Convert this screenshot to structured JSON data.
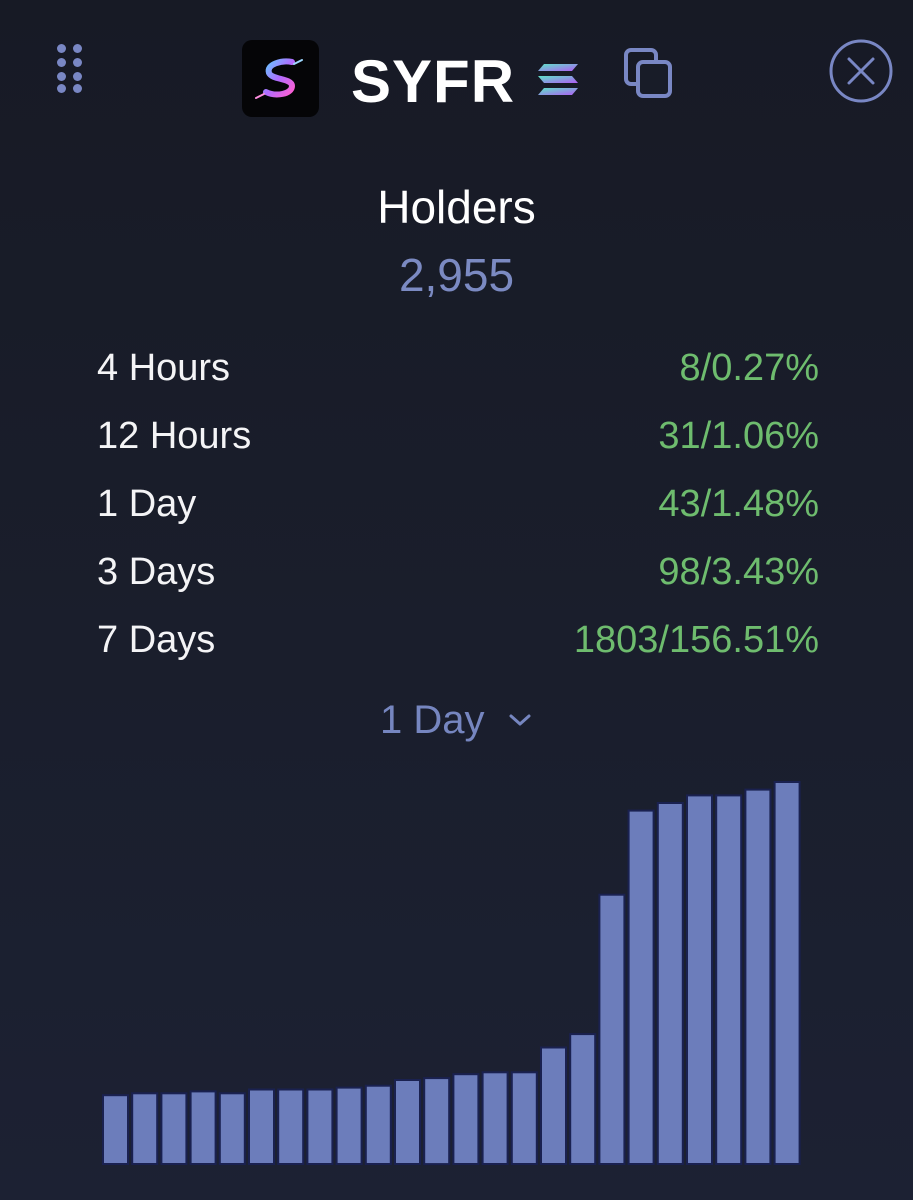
{
  "header": {
    "token_symbol": "SYFR",
    "logo_icon": "syfr-s-logo",
    "chain_icon": "solana-icon",
    "menu_icon": "grip-dots-icon",
    "copy_icon": "copy-icon",
    "close_icon": "close-circle-icon"
  },
  "holders": {
    "title": "Holders",
    "count": "2,955"
  },
  "stats": [
    {
      "label": "4 Hours",
      "value": "8/0.27%"
    },
    {
      "label": "12 Hours",
      "value": "31/1.06%"
    },
    {
      "label": "1 Day",
      "value": "43/1.48%"
    },
    {
      "label": "3 Days",
      "value": "98/3.43%"
    },
    {
      "label": "7 Days",
      "value": "1803/156.51%"
    }
  ],
  "period_select": {
    "selected": "1 Day"
  },
  "colors": {
    "background": "#181c28",
    "accent": "#7b8ac2",
    "positive": "#6ebc6e",
    "bar_fill": "#6c7dbb",
    "bar_stroke": "#1a2150"
  },
  "chart_data": {
    "type": "bar",
    "title": "",
    "xlabel": "",
    "ylabel": "",
    "grid": false,
    "legend": "none",
    "ylim": [
      0,
      1
    ],
    "values": [
      0.18,
      0.185,
      0.185,
      0.19,
      0.185,
      0.195,
      0.195,
      0.195,
      0.2,
      0.205,
      0.22,
      0.225,
      0.235,
      0.24,
      0.24,
      0.305,
      0.34,
      0.705,
      0.925,
      0.945,
      0.965,
      0.965,
      0.98,
      1.0
    ]
  }
}
